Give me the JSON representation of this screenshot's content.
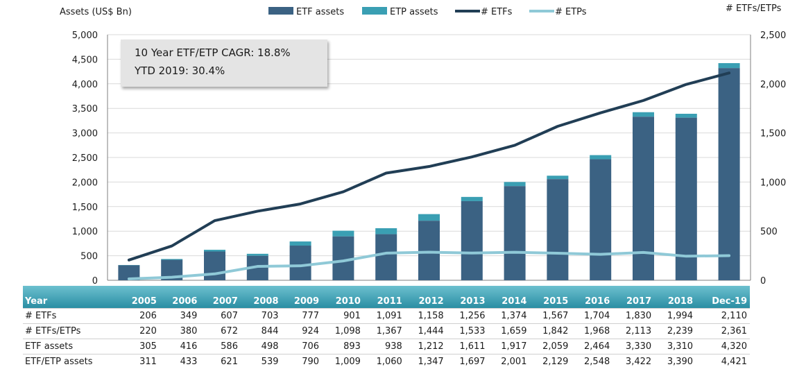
{
  "chart_data": {
    "type": "bar",
    "categories": [
      "2005",
      "2006",
      "2007",
      "2008",
      "2009",
      "2010",
      "2011",
      "2012",
      "2013",
      "2014",
      "2015",
      "2016",
      "2017",
      "2018",
      "Dec-19"
    ],
    "ylabel": "Assets (US$ Bn)",
    "y2label": "# ETFs/ETPs",
    "ylim": [
      0,
      5000
    ],
    "y2lim": [
      0,
      2500
    ],
    "yticks": [
      "0",
      "500",
      "1,000",
      "1,500",
      "2,000",
      "2,500",
      "3,000",
      "3,500",
      "4,000",
      "4,500",
      "5,000"
    ],
    "y2ticks": [
      "0",
      "500",
      "1,000",
      "1,500",
      "2,000",
      "2,500"
    ],
    "legend_position": "top",
    "series": [
      {
        "name": "ETF assets",
        "type": "bar",
        "axis": "left",
        "color": "#3b6283",
        "values": [
          305,
          416,
          586,
          498,
          706,
          893,
          938,
          1212,
          1611,
          1917,
          2059,
          2464,
          3330,
          3310,
          4320
        ]
      },
      {
        "name": "ETP assets",
        "type": "bar-stack",
        "axis": "left",
        "color": "#3a9fb3",
        "values": [
          311,
          433,
          621,
          539,
          790,
          1009,
          1060,
          1347,
          1697,
          2001,
          2129,
          2548,
          3422,
          3390,
          4421
        ]
      },
      {
        "name": "# ETFs",
        "type": "line",
        "axis": "right",
        "color": "#213e55",
        "values": [
          206,
          349,
          607,
          703,
          777,
          901,
          1091,
          1158,
          1256,
          1374,
          1567,
          1704,
          1830,
          1994,
          2110
        ]
      },
      {
        "name": "# ETPs",
        "type": "line",
        "axis": "right",
        "color": "#8fc9d7",
        "values": [
          14,
          31,
          65,
          141,
          147,
          197,
          276,
          286,
          277,
          285,
          275,
          264,
          283,
          245,
          251
        ]
      }
    ],
    "annotations": [
      "10 Year ETF/ETP CAGR: 18.8%",
      "YTD 2019: 30.4%"
    ]
  },
  "table": {
    "header": [
      "Year",
      "2005",
      "2006",
      "2007",
      "2008",
      "2009",
      "2010",
      "2011",
      "2012",
      "2013",
      "2014",
      "2015",
      "2016",
      "2017",
      "2018",
      "Dec-19"
    ],
    "rows": [
      {
        "label": "# ETFs",
        "values": [
          "206",
          "349",
          "607",
          "703",
          "777",
          "901",
          "1,091",
          "1,158",
          "1,256",
          "1,374",
          "1,567",
          "1,704",
          "1,830",
          "1,994",
          "2,110"
        ]
      },
      {
        "label": "# ETFs/ETPs",
        "values": [
          "220",
          "380",
          "672",
          "844",
          "924",
          "1,098",
          "1,367",
          "1,444",
          "1,533",
          "1,659",
          "1,842",
          "1,968",
          "2,113",
          "2,239",
          "2,361"
        ]
      },
      {
        "label": "ETF assets",
        "values": [
          "305",
          "416",
          "586",
          "498",
          "706",
          "893",
          "938",
          "1,212",
          "1,611",
          "1,917",
          "2,059",
          "2,464",
          "3,330",
          "3,310",
          "4,320"
        ]
      },
      {
        "label": "ETF/ETP assets",
        "values": [
          "311",
          "433",
          "621",
          "539",
          "790",
          "1,009",
          "1,060",
          "1,347",
          "1,697",
          "2,001",
          "2,129",
          "2,548",
          "3,422",
          "3,390",
          "4,421"
        ]
      }
    ]
  }
}
